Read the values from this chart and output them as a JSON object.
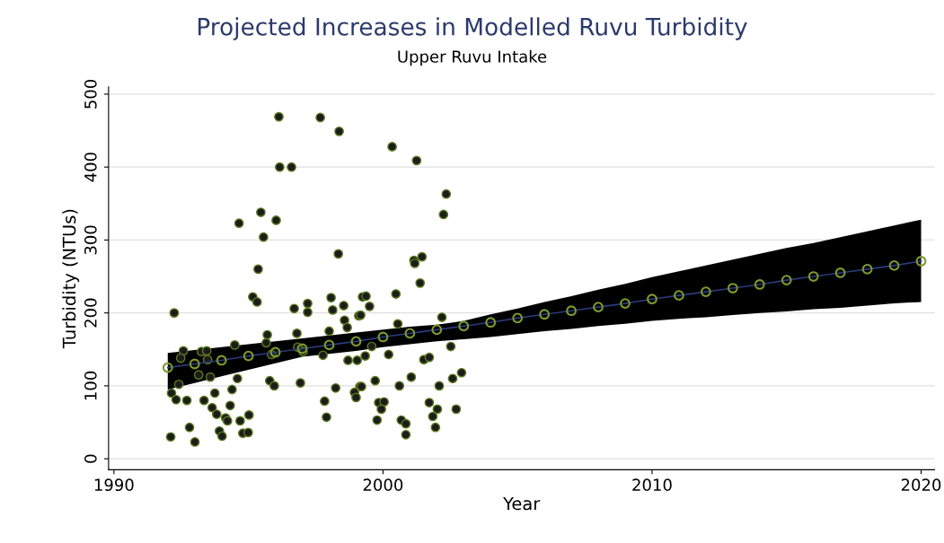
{
  "chart_data": {
    "type": "scatter",
    "title": "Projected Increases in Modelled Ruvu Turbidity",
    "subtitle": "Upper Ruvu Intake",
    "xlabel": "Year",
    "ylabel": "Turbidity (NTUs)",
    "xlim": [
      1989.8,
      2020.5
    ],
    "ylim": [
      -15,
      510
    ],
    "xticks": [
      1990,
      2000,
      2010,
      2020
    ],
    "yticks": [
      0,
      100,
      200,
      300,
      400,
      500
    ],
    "grid": "y",
    "legend": false,
    "series": [
      {
        "marker": "circle",
        "color": "#1c1c1c",
        "x": [
          1992.24,
          1996.13,
          1997.67,
          1998.37,
          1996.16,
          1996.6,
          1994.65,
          1995.46,
          1996.03,
          1995.56,
          1998.34,
          1995.36,
          1995.16,
          1995.32,
          1996.7,
          1997.2,
          1997.2,
          1998.07,
          1998.13,
          1998.54,
          1998.57,
          1998.67,
          1999.1,
          1995.7,
          1995.66,
          1996.8,
          1998.0,
          1994.49,
          1992.58,
          1992.48,
          1993.25,
          1993.45,
          1993.48,
          1995.86,
          1996.83,
          1997.03,
          1997.77,
          1993.15,
          1993.58,
          1992.41,
          1994.59,
          1995.79,
          1995.96,
          1996.93,
          1992.14,
          1992.31,
          1992.71,
          1993.35,
          1993.75,
          1994.39,
          1994.32,
          1993.65,
          1993.82,
          1994.15,
          1994.22,
          1994.69,
          1995.02,
          1998.24,
          1997.83,
          1997.9,
          1992.81,
          1992.11,
          1993.01,
          1993.92,
          1994.02,
          1994.79,
          1994.99,
          1999.14,
          1998.94,
          1999.0,
          1998.7,
          1999.04,
          1999.24,
          2000.34,
          2001.25,
          2002.35,
          2002.25,
          2001.15,
          2001.45,
          2001.18,
          2001.38,
          2000.48,
          1999.37,
          1999.5,
          1999.17,
          2000.55,
          2002.19,
          1999.58,
          2002.52,
          1999.34,
          2000.21,
          2001.52,
          2001.72,
          2002.92,
          2002.59,
          2001.05,
          1999.71,
          1999.2,
          2000.61,
          2002.09,
          1999.84,
          2000.04,
          1999.94,
          2001.72,
          2002.02,
          2001.85,
          2002.72,
          1999.78,
          2000.68,
          2000.85,
          2000.85,
          2001.95
        ],
        "values": [
          200,
          469,
          468,
          449,
          400,
          400,
          323,
          338,
          327,
          304,
          281,
          260,
          222,
          215,
          206,
          213,
          201,
          221,
          204,
          210,
          190,
          180,
          196,
          170,
          159,
          172,
          175,
          156,
          148,
          138,
          147,
          148,
          136,
          143,
          153,
          147,
          142,
          115,
          112,
          102,
          110,
          107,
          100,
          104,
          90,
          81,
          80,
          80,
          90,
          95,
          73,
          70,
          61,
          56,
          52,
          52,
          60,
          97,
          79,
          57,
          43,
          30,
          23,
          38,
          31,
          35,
          36,
          99,
          91,
          84,
          135,
          135,
          222,
          428,
          409,
          363,
          335,
          272,
          277,
          268,
          241,
          226,
          223,
          209,
          197,
          185,
          194,
          154,
          154,
          141,
          143,
          136,
          139,
          118,
          110,
          112,
          107,
          99,
          100,
          100,
          77,
          78,
          68,
          77,
          68,
          58,
          68,
          53,
          53,
          48,
          33,
          43
        ]
      },
      {
        "type": "line",
        "marker": "circle",
        "color": "#2b3a7a",
        "x": [
          1992,
          1993,
          1994,
          1995,
          1996,
          1997,
          1998,
          1999,
          2000,
          2001,
          2002,
          2003,
          2004,
          2005,
          2006,
          2007,
          2008,
          2009,
          2010,
          2011,
          2012,
          2013,
          2014,
          2015,
          2016,
          2017,
          2018,
          2019,
          2020
        ],
        "values": [
          125,
          130,
          135,
          141,
          146,
          151,
          156,
          161,
          167,
          172,
          177,
          182,
          187,
          193,
          198,
          203,
          208,
          213,
          219,
          224,
          229,
          234,
          239,
          245,
          250,
          255,
          260,
          265,
          271
        ],
        "lower": [
          95,
          104,
          113,
          122,
          131,
          140,
          144,
          148,
          153,
          157,
          161,
          164,
          167,
          171,
          175,
          178,
          182,
          185,
          189,
          192,
          194,
          197,
          200,
          202,
          205,
          207,
          210,
          213,
          215
        ],
        "upper": [
          145,
          149,
          153,
          157,
          161,
          165,
          169,
          173,
          177,
          181,
          184,
          189,
          198,
          206,
          215,
          223,
          232,
          240,
          249,
          257,
          265,
          273,
          281,
          289,
          296,
          304,
          312,
          320,
          328
        ]
      }
    ]
  }
}
